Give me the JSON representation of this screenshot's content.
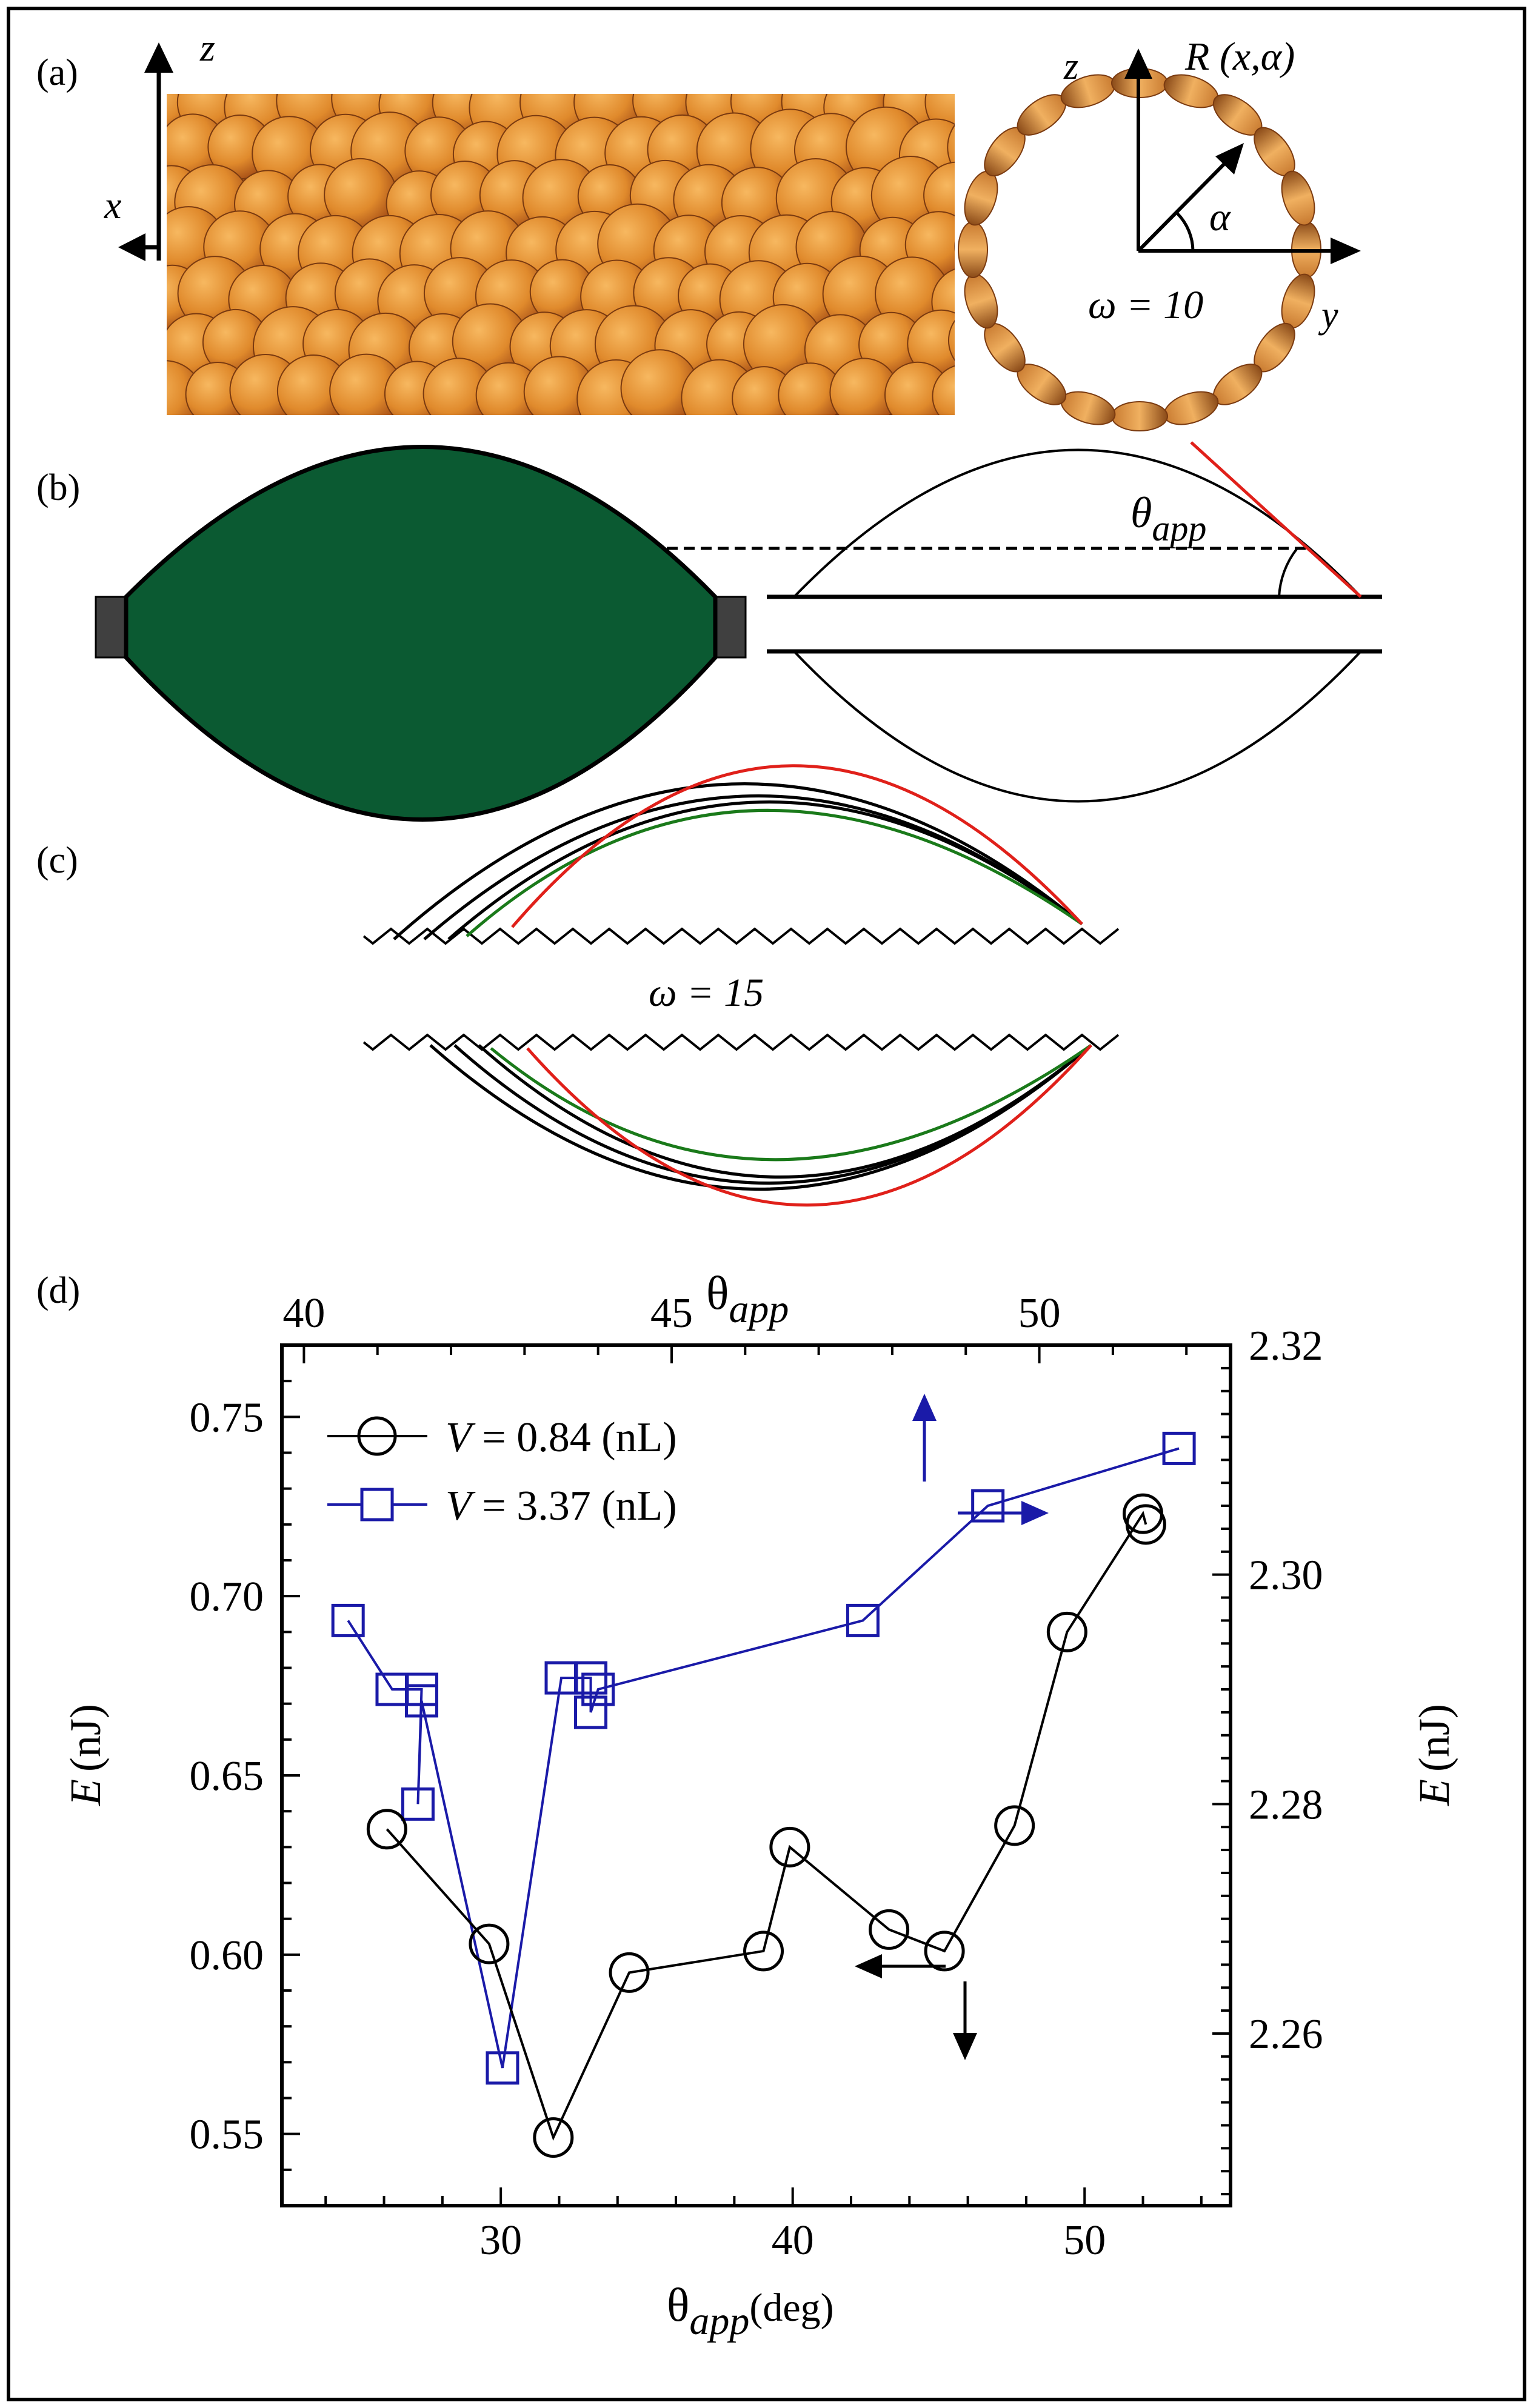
{
  "panels": {
    "a": {
      "label": "(a)",
      "axis_z": "z",
      "axis_x": "x",
      "axis_z2": "z",
      "axis_y": "y",
      "radius_label": "R (x,α)",
      "angle_label": "α",
      "omega_label": "ω = 10"
    },
    "b": {
      "label": "(b)",
      "theta_main": "θ",
      "theta_sub": "app"
    },
    "c": {
      "label": "(c)",
      "omega_label": "ω = 15"
    },
    "d": {
      "label": "(d)",
      "top_axis_title_main": "θ",
      "top_axis_title_sub": "app",
      "bottom_axis_title_main": "θ",
      "bottom_axis_title_sub": "app",
      "bottom_axis_title_unit": "(deg)",
      "left_axis_title_main": "E",
      "left_axis_title_unit": "(nJ)",
      "right_axis_title_main": "E",
      "right_axis_title_unit": "(nJ)",
      "legend": [
        {
          "prefix": "V",
          "rest": " = 0.84 (nL)"
        },
        {
          "prefix": "V",
          "rest": " = 3.37 (nL)"
        }
      ]
    }
  },
  "colors": {
    "black_series": "#000000",
    "blue_series": "#1a1aa8",
    "green_fill": "#0b5a32",
    "red_line": "#e0201a",
    "green_line": "#1a7a1a",
    "bead_light": "#f0a040",
    "bead_dark": "#a84a10"
  },
  "chart_data": {
    "type": "line",
    "title": "",
    "xlabel": "θapp (deg)",
    "x2label": "θapp",
    "ylabel": "E (nJ)",
    "y2label": "E (nJ)",
    "xlim": [
      22.5,
      55
    ],
    "x2lim": [
      39.7,
      52.6
    ],
    "ylim": [
      0.53,
      0.77
    ],
    "y2lim": [
      2.245,
      2.32
    ],
    "xticks": [
      30,
      40,
      50
    ],
    "x2ticks": [
      40,
      45,
      50
    ],
    "yticks": [
      0.55,
      0.6,
      0.65,
      0.7,
      0.75
    ],
    "y2ticks": [
      2.26,
      2.28,
      2.3,
      2.32
    ],
    "xtick_labels": [
      "30",
      "40",
      "50"
    ],
    "x2tick_labels": [
      "40",
      "45",
      "50"
    ],
    "ytick_labels": [
      "0.55",
      "0.60",
      "0.65",
      "0.70",
      "0.75"
    ],
    "y2tick_labels": [
      "2.26",
      "2.28",
      "2.30",
      "2.32"
    ],
    "series": [
      {
        "name": "V = 0.84 (nL)",
        "axes": "bottom-left",
        "marker": "circle",
        "color": "#000000",
        "points": [
          [
            26.1,
            0.635
          ],
          [
            29.6,
            0.603
          ],
          [
            31.8,
            0.549
          ],
          [
            34.4,
            0.595
          ],
          [
            39.0,
            0.601
          ],
          [
            39.9,
            0.63
          ],
          [
            43.3,
            0.607
          ],
          [
            45.2,
            0.601
          ],
          [
            47.6,
            0.636
          ],
          [
            49.4,
            0.69
          ],
          [
            52.0,
            0.723
          ],
          [
            52.1,
            0.72
          ]
        ]
      },
      {
        "name": "V = 3.37 (nL)",
        "axes": "top-right",
        "marker": "square",
        "color": "#1a1aa8",
        "points": [
          [
            40.6,
            2.296
          ],
          [
            41.2,
            2.29
          ],
          [
            41.6,
            2.29
          ],
          [
            41.55,
            2.28
          ],
          [
            41.6,
            2.289
          ],
          [
            42.7,
            2.257
          ],
          [
            43.5,
            2.291
          ],
          [
            43.9,
            2.291
          ],
          [
            43.9,
            2.288
          ],
          [
            44.0,
            2.29
          ],
          [
            47.6,
            2.296
          ],
          [
            49.3,
            2.306
          ],
          [
            51.9,
            2.311
          ]
        ]
      }
    ],
    "annotations": [
      "arrow up and right near blue series (top-right axes)",
      "arrow left and down near black series (bottom-left axes)"
    ]
  }
}
